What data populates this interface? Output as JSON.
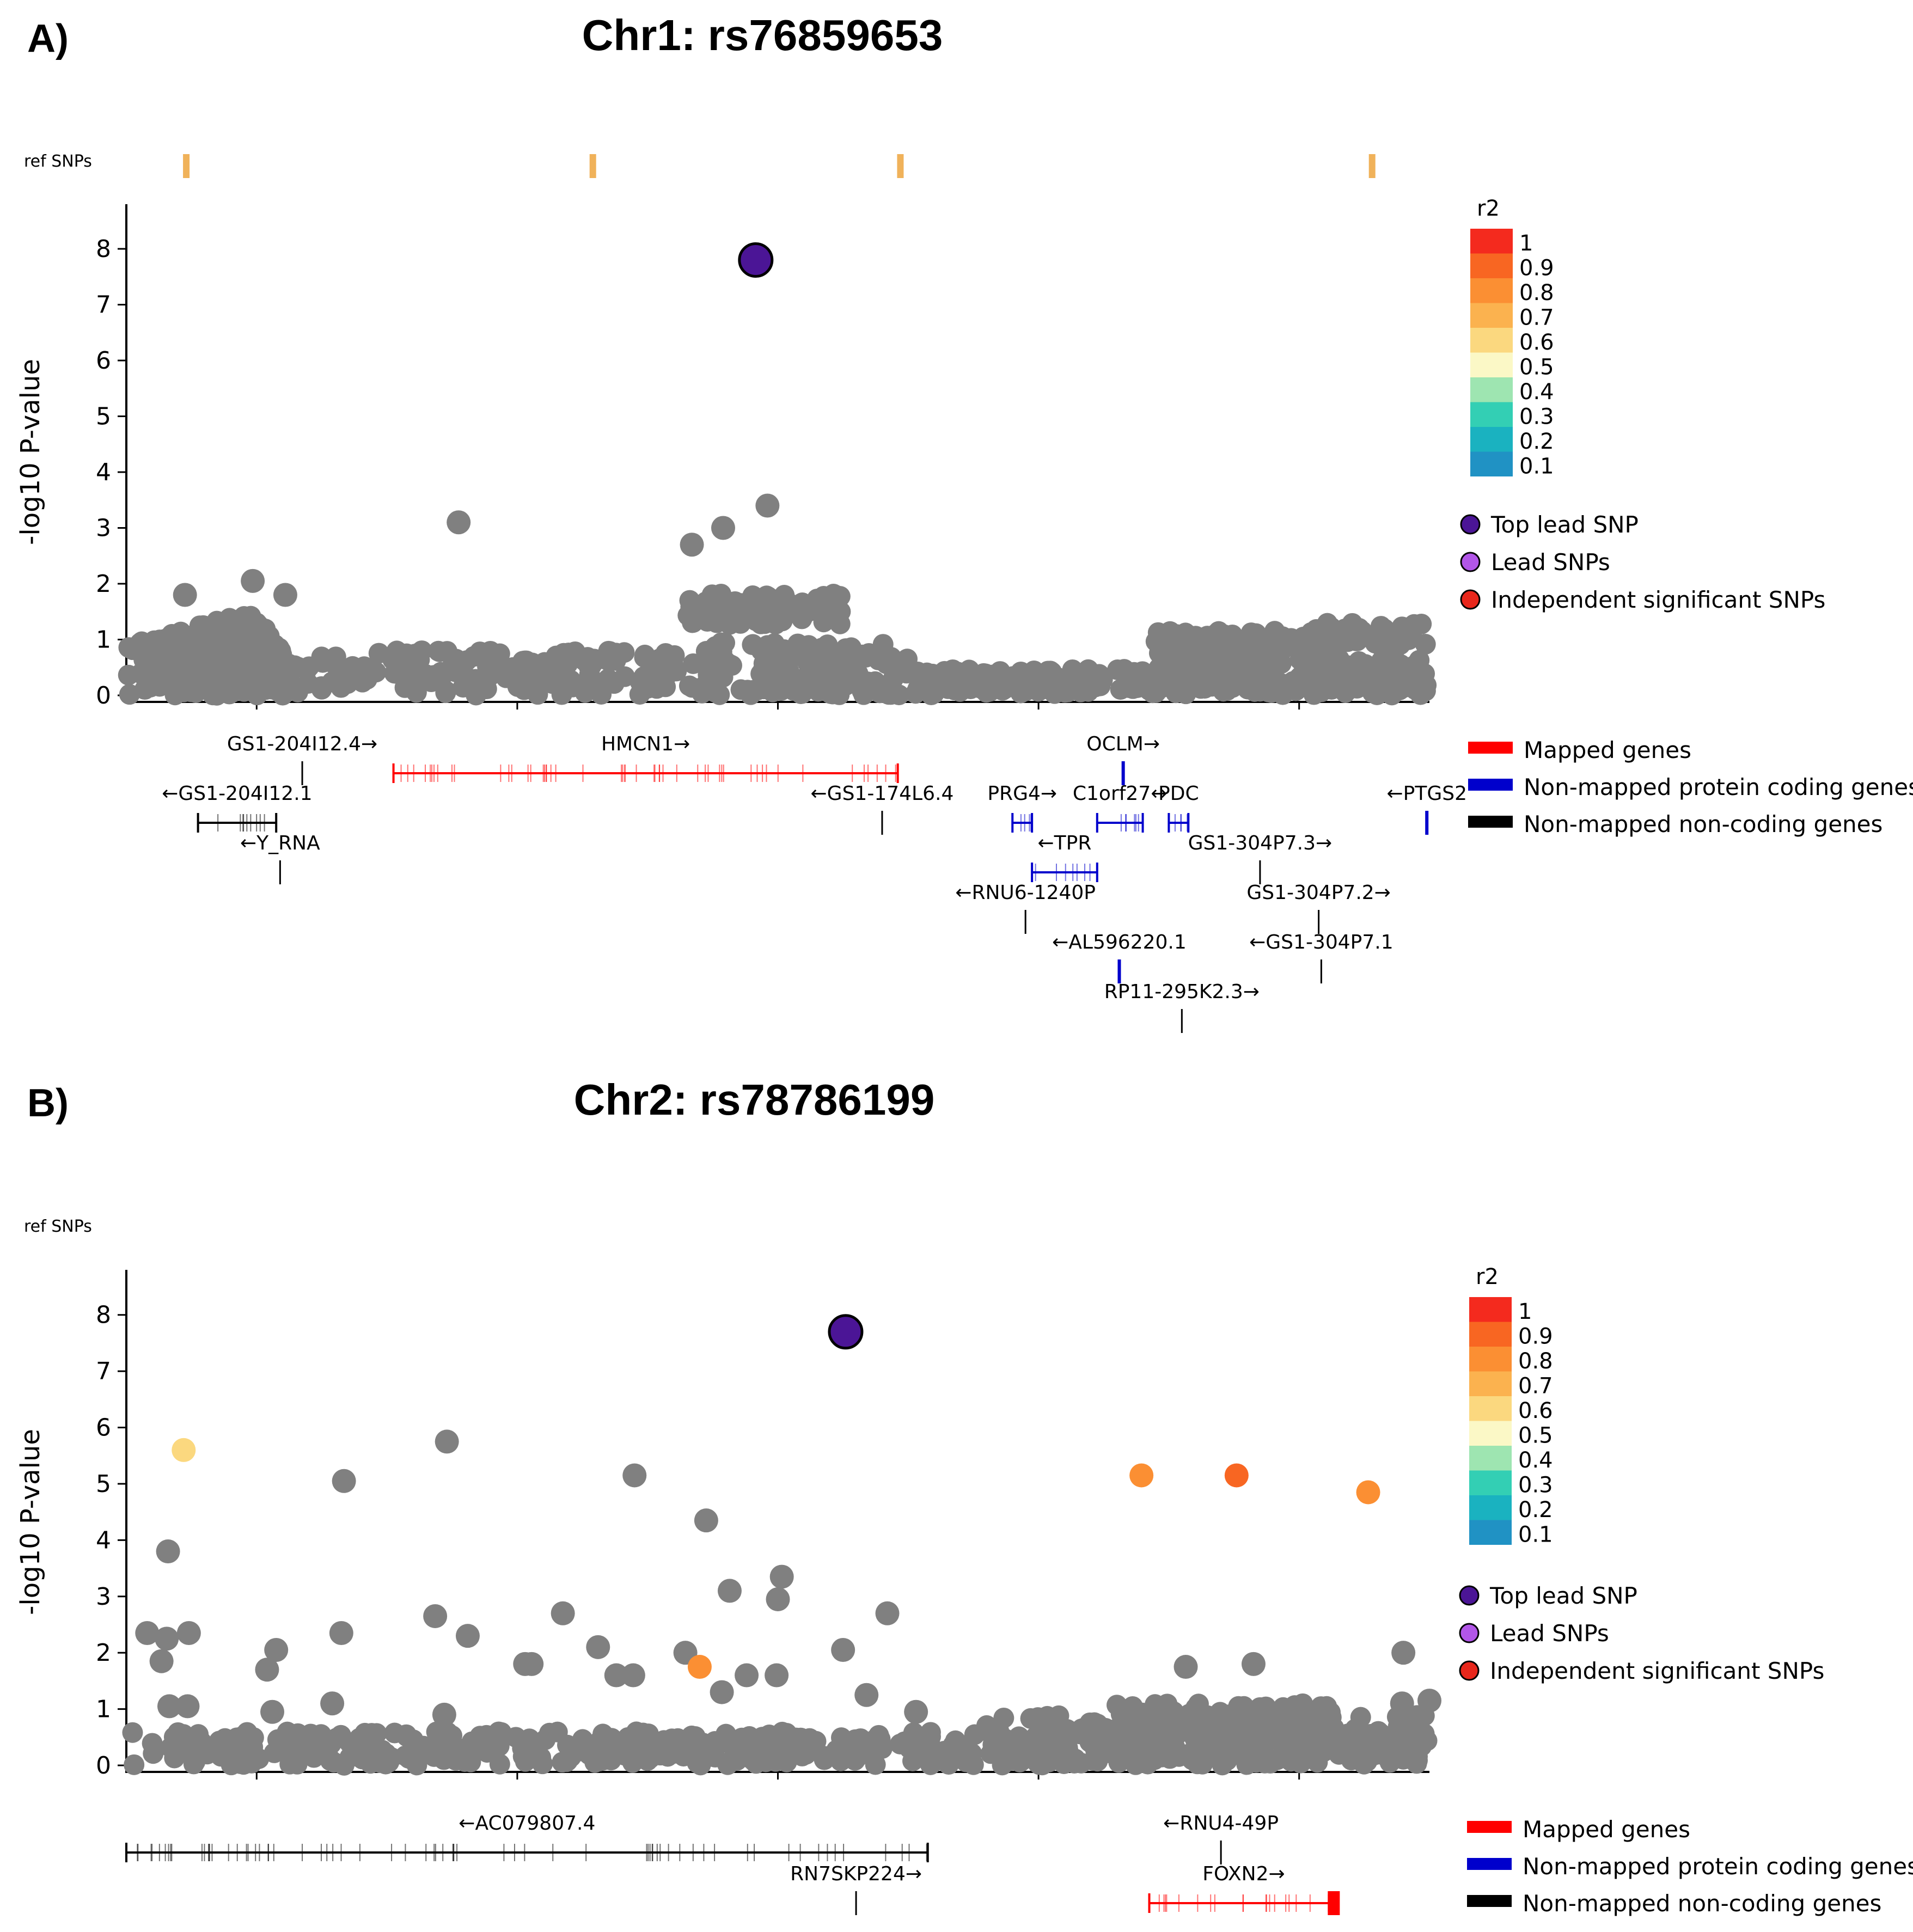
{
  "colors": {
    "point": "#808080",
    "top_lead": "#4b1596",
    "lead": "#b256e8",
    "independent": "#e8271c",
    "mapped": "#ff0000",
    "protein": "#0000cc",
    "noncoding": "#000000",
    "refsnp": "#f0b25a",
    "r2_scale": [
      "#f42a1e",
      "#f86622",
      "#fb8f33",
      "#fbb24f",
      "#fbd87f",
      "#fbf8c6",
      "#9ee5b1",
      "#33cfb4",
      "#1ab2c0",
      "#2092c4"
    ]
  },
  "panels": [
    {
      "label": "A)",
      "title": "Chr1: rs76859653",
      "ref_label": "ref SNPs",
      "ylabel": "-log10 P-value",
      "ylim": [
        0,
        8.8
      ],
      "yticks": [
        "0",
        "1",
        "2",
        "3",
        "4",
        "5",
        "6",
        "7",
        "8"
      ],
      "r2_title": "r2",
      "r2_ticks": [
        "1",
        "0.9",
        "0.8",
        "0.7",
        "0.6",
        "0.5",
        "0.4",
        "0.3",
        "0.2",
        "0.1"
      ],
      "legend_points": [
        "Top lead SNP",
        "Lead SNPs",
        "Independent significant SNPs"
      ],
      "legend_genes": [
        "Mapped genes",
        "Non-mapped protein coding genes",
        "Non-mapped non-coding genes"
      ]
    },
    {
      "label": "B)",
      "title": "Chr2: rs78786199",
      "ref_label": "ref SNPs",
      "ylabel": "-log10 P-value",
      "ylim": [
        0,
        8.8
      ],
      "yticks": [
        "0",
        "1",
        "2",
        "3",
        "4",
        "5",
        "6",
        "7",
        "8"
      ],
      "r2_title": "r2",
      "r2_ticks": [
        "1",
        "0.9",
        "0.8",
        "0.7",
        "0.6",
        "0.5",
        "0.4",
        "0.3",
        "0.2",
        "0.1"
      ],
      "legend_points": [
        "Top lead SNP",
        "Lead SNPs",
        "Independent significant SNPs"
      ],
      "legend_genes": [
        "Mapped genes",
        "Non-mapped protein coding genes",
        "Non-mapped non-coding genes"
      ]
    }
  ],
  "chart_data": [
    {
      "type": "scatter",
      "title": "Chr1: rs76859653",
      "xlabel": "",
      "ylabel": "-log10 P-value",
      "xlim": [
        0,
        100
      ],
      "ylim": [
        0,
        8.8
      ],
      "ref_snps": [
        4.6,
        35.8,
        59.4,
        95.6
      ],
      "top_lead": {
        "x": 48.3,
        "y": 7.8
      },
      "notable_points": [
        {
          "x": 25.5,
          "y": 3.1
        },
        {
          "x": 43.4,
          "y": 2.7
        },
        {
          "x": 45.8,
          "y": 3.0
        },
        {
          "x": 49.2,
          "y": 3.4
        },
        {
          "x": 9.7,
          "y": 2.05
        },
        {
          "x": 4.5,
          "y": 1.8
        },
        {
          "x": 12.2,
          "y": 1.8
        }
      ],
      "background": [
        {
          "x0": 0,
          "x1": 12,
          "y": 0.55,
          "spread": 0.55,
          "n": 170
        },
        {
          "x0": 4,
          "x1": 11,
          "y": 1.1,
          "spread": 0.35,
          "n": 55
        },
        {
          "x0": 12,
          "x1": 45,
          "y": 0.4,
          "spread": 0.4,
          "n": 180
        },
        {
          "x0": 43,
          "x1": 55,
          "y": 1.55,
          "spread": 0.28,
          "n": 80
        },
        {
          "x0": 45,
          "x1": 62,
          "y": 0.45,
          "spread": 0.5,
          "n": 150
        },
        {
          "x0": 62,
          "x1": 79,
          "y": 0.25,
          "spread": 0.22,
          "n": 120
        },
        {
          "x0": 79,
          "x1": 92,
          "y": 0.95,
          "spread": 0.2,
          "n": 90
        },
        {
          "x0": 79,
          "x1": 100,
          "y": 0.35,
          "spread": 0.35,
          "n": 170
        },
        {
          "x0": 91,
          "x1": 100,
          "y": 1.1,
          "spread": 0.2,
          "n": 50
        }
      ],
      "genes": [
        {
          "name": "GS1-204I12.4→",
          "type": "noncoding",
          "x0": 13.5,
          "x1": 13.5,
          "row": 0
        },
        {
          "name": "HMCN1→",
          "type": "mapped",
          "x0": 20.5,
          "x1": 59.2,
          "row": 0
        },
        {
          "name": "OCLM→",
          "type": "protein",
          "x0": 76.5,
          "x1": 76.5,
          "row": 0
        },
        {
          "name": "←GS1-204I12.1",
          "type": "noncoding",
          "x0": 5.5,
          "x1": 11.5,
          "row": 1
        },
        {
          "name": "←GS1-174L6.4",
          "type": "noncoding",
          "x0": 58.0,
          "x1": 58.0,
          "row": 1
        },
        {
          "name": "PRG4→",
          "type": "protein",
          "x0": 68.0,
          "x1": 69.5,
          "row": 1
        },
        {
          "name": "C1orf27↔",
          "type": "protein",
          "x0": 74.5,
          "x1": 78.0,
          "row": 1
        },
        {
          "name": "PDC",
          "type": "protein",
          "x0": 80.0,
          "x1": 81.5,
          "row": 1
        },
        {
          "name": "←PTGS2",
          "type": "protein",
          "x0": 99.8,
          "x1": 99.8,
          "row": 1
        },
        {
          "name": "←Y_RNA",
          "type": "noncoding",
          "x0": 11.8,
          "x1": 11.8,
          "row": 2
        },
        {
          "name": "←TPR",
          "type": "protein",
          "x0": 69.5,
          "x1": 74.5,
          "row": 2
        },
        {
          "name": "GS1-304P7.3→",
          "type": "noncoding",
          "x0": 87.0,
          "x1": 87.0,
          "row": 2
        },
        {
          "name": "←RNU6-1240P",
          "type": "noncoding",
          "x0": 69.0,
          "x1": 69.0,
          "row": 3
        },
        {
          "name": "GS1-304P7.2→",
          "type": "noncoding",
          "x0": 91.5,
          "x1": 91.5,
          "row": 3
        },
        {
          "name": "←AL596220.1",
          "type": "protein",
          "x0": 76.2,
          "x1": 76.2,
          "row": 4
        },
        {
          "name": "←GS1-304P7.1",
          "type": "noncoding",
          "x0": 91.7,
          "x1": 91.7,
          "row": 4
        },
        {
          "name": "RP11-295K2.3→",
          "type": "noncoding",
          "x0": 81.0,
          "x1": 81.0,
          "row": 5
        }
      ]
    },
    {
      "type": "scatter",
      "title": "Chr2: rs78786199",
      "xlabel": "",
      "ylabel": "-log10 P-value",
      "xlim": [
        0,
        100
      ],
      "ylim": [
        0,
        8.8
      ],
      "ref_snps": [],
      "top_lead": {
        "x": 55.2,
        "y": 7.7
      },
      "colored_points": [
        {
          "x": 4.4,
          "y": 5.6,
          "r2": 0.6
        },
        {
          "x": 77.9,
          "y": 5.15,
          "r2": 0.8
        },
        {
          "x": 95.3,
          "y": 4.85,
          "r2": 0.8
        },
        {
          "x": 44.0,
          "y": 1.75,
          "r2": 0.8
        },
        {
          "x": 85.2,
          "y": 5.15,
          "r2": 0.9
        }
      ],
      "notable_points": [
        {
          "x": 24.6,
          "y": 5.75
        },
        {
          "x": 16.7,
          "y": 5.05
        },
        {
          "x": 39.0,
          "y": 5.15
        },
        {
          "x": 44.5,
          "y": 4.35
        },
        {
          "x": 3.2,
          "y": 3.8
        },
        {
          "x": 46.3,
          "y": 3.1
        },
        {
          "x": 50.3,
          "y": 3.35
        },
        {
          "x": 50.0,
          "y": 2.95
        },
        {
          "x": 58.4,
          "y": 2.7
        },
        {
          "x": 33.5,
          "y": 2.7
        },
        {
          "x": 23.7,
          "y": 2.65
        },
        {
          "x": 1.6,
          "y": 2.35
        },
        {
          "x": 3.1,
          "y": 2.25
        },
        {
          "x": 4.8,
          "y": 2.35
        },
        {
          "x": 16.5,
          "y": 2.35
        },
        {
          "x": 26.2,
          "y": 2.3
        },
        {
          "x": 36.2,
          "y": 2.1
        },
        {
          "x": 55.0,
          "y": 2.05
        },
        {
          "x": 11.5,
          "y": 2.05
        },
        {
          "x": 42.9,
          "y": 2.0
        },
        {
          "x": 98.0,
          "y": 2.0
        },
        {
          "x": 2.7,
          "y": 1.85
        },
        {
          "x": 10.8,
          "y": 1.7
        },
        {
          "x": 31.1,
          "y": 1.8
        },
        {
          "x": 30.6,
          "y": 1.8
        },
        {
          "x": 37.6,
          "y": 1.6
        },
        {
          "x": 38.9,
          "y": 1.6
        },
        {
          "x": 47.6,
          "y": 1.6
        },
        {
          "x": 49.9,
          "y": 1.6
        },
        {
          "x": 45.7,
          "y": 1.3
        },
        {
          "x": 56.8,
          "y": 1.25
        },
        {
          "x": 3.3,
          "y": 1.05
        },
        {
          "x": 4.7,
          "y": 1.05
        },
        {
          "x": 15.8,
          "y": 1.1
        },
        {
          "x": 11.2,
          "y": 0.95
        },
        {
          "x": 24.4,
          "y": 0.9
        },
        {
          "x": 60.6,
          "y": 0.95
        },
        {
          "x": 86.5,
          "y": 1.8
        },
        {
          "x": 81.3,
          "y": 1.75
        },
        {
          "x": 97.9,
          "y": 1.1
        },
        {
          "x": 100.0,
          "y": 1.15
        }
      ],
      "background": [
        {
          "x0": 0,
          "x1": 68,
          "y": 0.3,
          "spread": 0.3,
          "n": 330
        },
        {
          "x0": 66,
          "x1": 100,
          "y": 0.45,
          "spread": 0.45,
          "n": 280
        },
        {
          "x0": 76,
          "x1": 93,
          "y": 0.85,
          "spread": 0.25,
          "n": 90
        }
      ],
      "genes": [
        {
          "name": "←AC079807.4",
          "type": "noncoding",
          "x0": 0.0,
          "x1": 61.5,
          "row": 0
        },
        {
          "name": "←RNU4-49P",
          "type": "noncoding",
          "x0": 84.0,
          "x1": 84.0,
          "row": 0
        },
        {
          "name": "RN7SKP224→",
          "type": "noncoding",
          "x0": 56.0,
          "x1": 56.0,
          "row": 1
        },
        {
          "name": "FOXN2→",
          "type": "mapped",
          "x0": 78.5,
          "x1": 93.0,
          "row": 1
        }
      ]
    }
  ]
}
